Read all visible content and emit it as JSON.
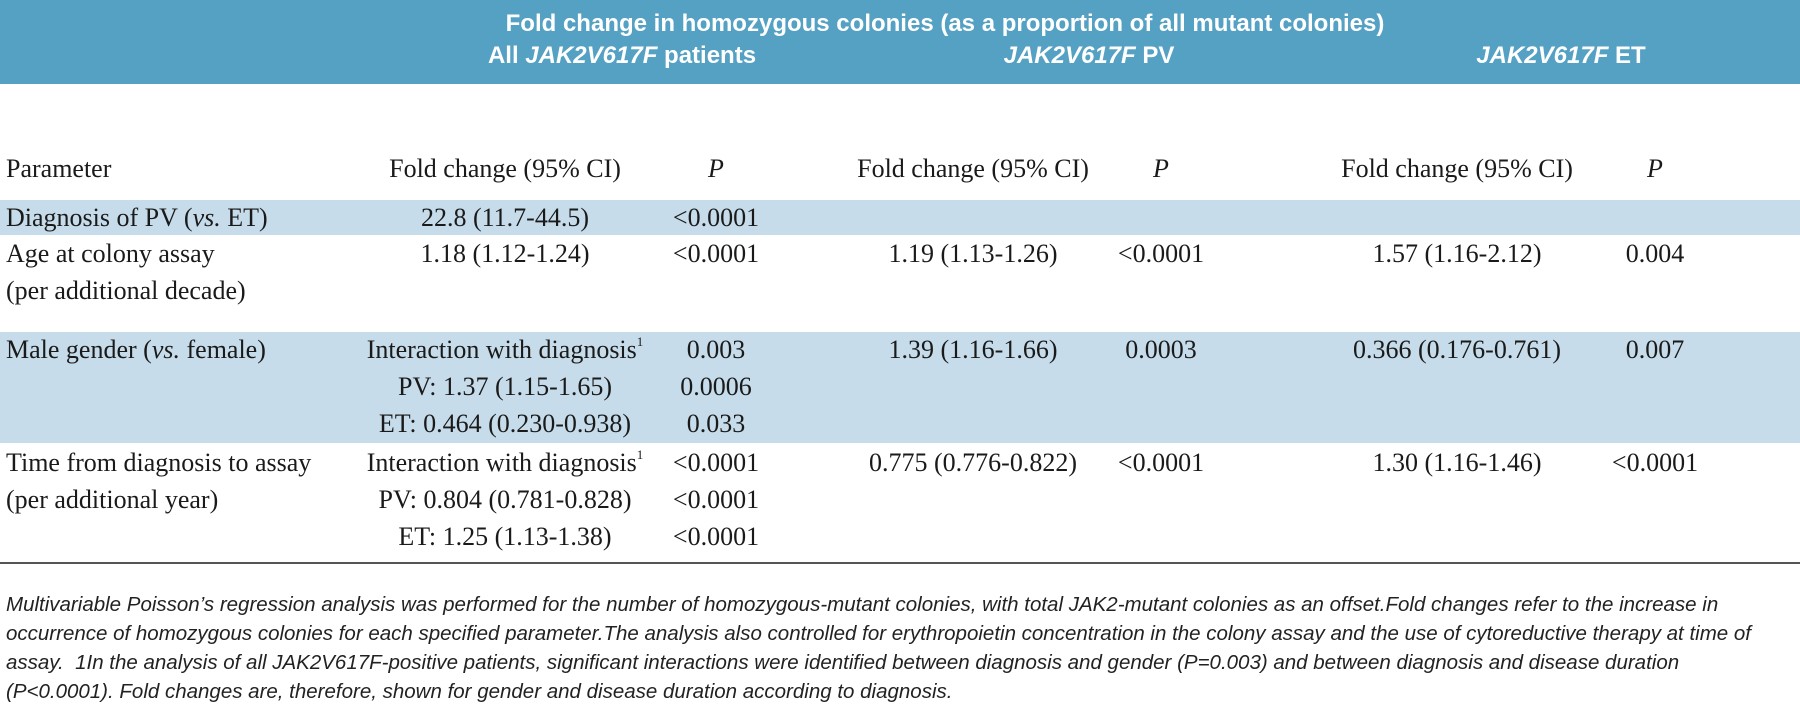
{
  "header": {
    "title": "Fold change in homozygous colonies (as a proportion of all mutant colonies)",
    "groups": [
      [
        "All ",
        {
          "italic": "JAK2V617F"
        },
        " patients"
      ],
      [
        {
          "italic": "JAK2V617F"
        },
        " PV"
      ],
      [
        {
          "italic": "JAK2V617F"
        },
        " ET"
      ]
    ]
  },
  "table": {
    "columns": [
      "Parameter",
      "Fold change (95% CI)",
      [
        {
          "italic": "P"
        }
      ],
      "Fold change (95% CI)",
      [
        {
          "italic": "P"
        }
      ],
      "Fold change (95% CI)",
      [
        {
          "italic": "P"
        }
      ]
    ],
    "rows": [
      [
        [
          [
            "Diagnosis of PV (",
            {
              "italic": "vs."
            },
            " ET)"
          ]
        ],
        [
          "22.8 (11.7-44.5)"
        ],
        [
          "<0.0001"
        ],
        [],
        [],
        [],
        []
      ],
      [
        [
          "Age at colony assay",
          "(per additional decade)"
        ],
        [
          "1.18 (1.12-1.24)"
        ],
        [
          "<0.0001"
        ],
        [
          "1.19 (1.13-1.26)"
        ],
        [
          "<0.0001"
        ],
        [
          "1.57 (1.16-2.12)"
        ],
        [
          "0.004"
        ]
      ],
      [
        [
          [
            "Male gender (",
            {
              "italic": "vs."
            },
            " female)"
          ]
        ],
        [
          [
            "Interaction with diagnosis",
            {
              "sup": "1"
            }
          ],
          "PV: 1.37 (1.15-1.65)",
          "ET: 0.464 (0.230-0.938)"
        ],
        [
          "0.003",
          "0.0006",
          "0.033"
        ],
        [
          "1.39 (1.16-1.66)"
        ],
        [
          "0.0003"
        ],
        [
          "0.366 (0.176-0.761)"
        ],
        [
          "0.007"
        ]
      ],
      [
        [
          "Time from diagnosis to assay",
          "(per additional year)"
        ],
        [
          [
            "Interaction with diagnosis",
            {
              "sup": "1"
            }
          ],
          "PV: 0.804 (0.781-0.828)",
          "ET: 1.25 (1.13-1.38)"
        ],
        [
          "<0.0001",
          "<0.0001",
          "<0.0001"
        ],
        [
          "0.775 (0.776-0.822)"
        ],
        [
          "<0.0001"
        ],
        [
          "1.30 (1.16-1.46)"
        ],
        [
          "<0.0001"
        ]
      ]
    ]
  },
  "footnote": "Multivariable Poisson’s regression analysis was performed for the number of homozygous-mutant colonies, with total JAK2-mutant colonies as an offset.Fold changes refer to the increase in occurrence of homozygous colonies for each specified parameter.The analysis also controlled for erythropoietin concentration in the colony assay and the use of cytoreductive therapy at time of assay.  1In the analysis of all JAK2V617F-positive patients, significant interactions were identified between diagnosis and gender (P=0.003) and between diagnosis and disease duration (P<0.0001). Fold changes are, therefore, shown for gender and disease duration according to diagnosis."
}
